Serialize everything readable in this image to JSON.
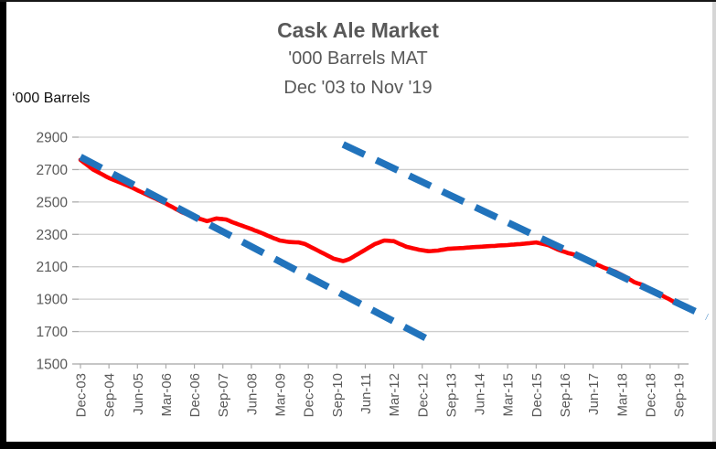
{
  "header": {
    "title": "Cask Ale Market",
    "subtitle_line1": "'000 Barrels MAT",
    "subtitle_line2": "Dec '03 to Nov '19"
  },
  "colors": {
    "series_red": "#FE0000",
    "trend_blue": "#2173BC",
    "title_text": "#595959",
    "axis_text": "#595959",
    "gridline": "#CDCDCD",
    "axis_line": "#ABABAB"
  },
  "chart_data": {
    "type": "line",
    "title": "Cask Ale Market",
    "subtitle": [
      "'000 Barrels MAT",
      "Dec '03 to Nov '19"
    ],
    "ylabel": "‘000 Barrels",
    "ylim": [
      1500,
      2900
    ],
    "y_ticks": [
      2900,
      2700,
      2500,
      2300,
      2100,
      1900,
      1700,
      1500
    ],
    "grid": true,
    "legend_position": "none",
    "x_frequency": "monthly",
    "x_start": "Dec-03",
    "x_end": "Nov-19",
    "x_tick_interval_months": 9,
    "x_tick_labels": [
      "Dec-03",
      "Sep-04",
      "Jun-05",
      "Mar-06",
      "Dec-06",
      "Sep-07",
      "Jun-08",
      "Mar-09",
      "Dec-09",
      "Sep-10",
      "Jun-11",
      "Mar-12",
      "Dec-12",
      "Sep-13",
      "Jun-14",
      "Mar-15",
      "Dec-15",
      "Sep-16",
      "Jun-17",
      "Mar-18",
      "Dec-18",
      "Sep-19"
    ],
    "series": [
      {
        "name": "Cask Ale Market '000 Barrels MAT",
        "color": "#FE0000",
        "style": "solid",
        "start_month": "Dec-03",
        "values": [
          2760,
          2745,
          2730,
          2715,
          2700,
          2690,
          2679,
          2669,
          2658,
          2648,
          2640,
          2632,
          2624,
          2616,
          2608,
          2600,
          2591,
          2582,
          2572,
          2563,
          2554,
          2545,
          2536,
          2527,
          2518,
          2508,
          2499,
          2490,
          2479,
          2469,
          2458,
          2448,
          2437,
          2429,
          2421,
          2413,
          2405,
          2399,
          2394,
          2388,
          2382,
          2387,
          2393,
          2398,
          2396,
          2394,
          2392,
          2384,
          2375,
          2368,
          2361,
          2354,
          2347,
          2340,
          2333,
          2325,
          2318,
          2310,
          2302,
          2293,
          2285,
          2277,
          2270,
          2262,
          2259,
          2256,
          2253,
          2252,
          2251,
          2250,
          2245,
          2240,
          2230,
          2220,
          2210,
          2200,
          2190,
          2180,
          2170,
          2160,
          2150,
          2145,
          2140,
          2135,
          2141,
          2148,
          2159,
          2171,
          2182,
          2194,
          2205,
          2217,
          2228,
          2240,
          2247,
          2255,
          2262,
          2261,
          2259,
          2258,
          2249,
          2240,
          2232,
          2223,
          2219,
          2214,
          2210,
          2205,
          2202,
          2199,
          2196,
          2197,
          2199,
          2200,
          2204,
          2207,
          2211,
          2212,
          2213,
          2214,
          2215,
          2216,
          2218,
          2219,
          2221,
          2222,
          2223,
          2224,
          2226,
          2227,
          2228,
          2229,
          2231,
          2232,
          2233,
          2234,
          2236,
          2237,
          2239,
          2240,
          2242,
          2244,
          2246,
          2248,
          2250,
          2246,
          2242,
          2237,
          2232,
          2223,
          2214,
          2205,
          2198,
          2192,
          2185,
          2180,
          2175,
          2170,
          2160,
          2150,
          2140,
          2132,
          2123,
          2115,
          2107,
          2098,
          2090,
          2083,
          2077,
          2070,
          2060,
          2050,
          2040,
          2028,
          2017,
          2005,
          1998,
          1992,
          1985,
          1973,
          1960,
          1950,
          1940,
          1930,
          1920,
          1910,
          1900,
          1889,
          1878,
          1869,
          1860,
          1855
        ]
      }
    ],
    "trend_lines": [
      {
        "name": "early-decline-trend",
        "color": "#2173BC",
        "style": "dashed",
        "points": [
          {
            "month_index": 0,
            "value": 2778
          },
          {
            "month_index": 111,
            "value": 1640
          }
        ]
      },
      {
        "name": "late-decline-trend",
        "color": "#2173BC",
        "style": "dashed",
        "points": [
          {
            "month_index": 83,
            "value": 2855
          },
          {
            "month_index": 198,
            "value": 1790
          }
        ]
      }
    ]
  }
}
